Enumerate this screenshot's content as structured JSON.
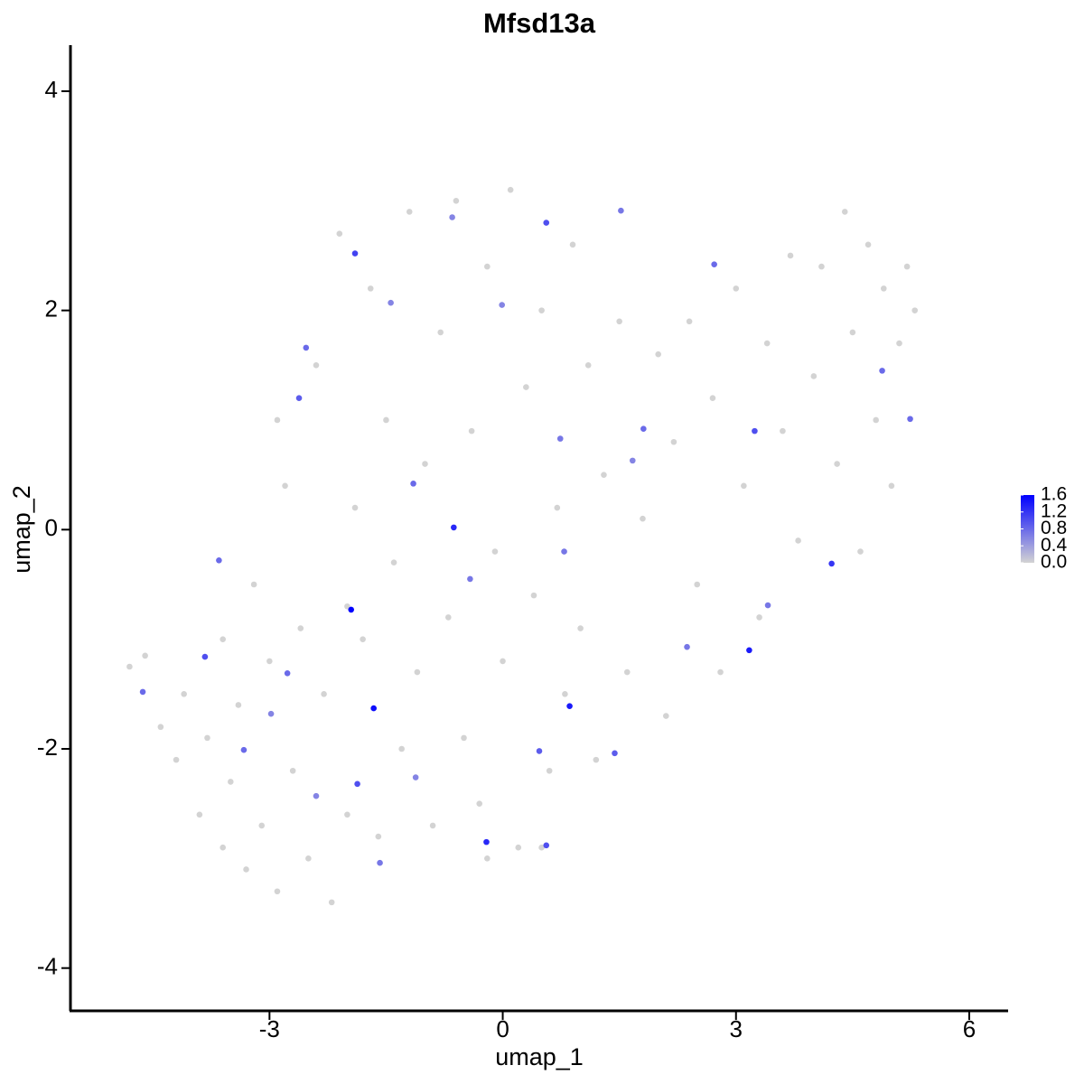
{
  "chart_data": {
    "type": "scatter",
    "title": "Mfsd13a",
    "x_label": "umap_1",
    "y_label": "umap_2",
    "xlim": [
      -5.56,
      6.5
    ],
    "ylim": [
      -4.39,
      4.42
    ],
    "xticks": [
      -3,
      0,
      3,
      6
    ],
    "yticks": [
      -4,
      -2,
      0,
      2,
      4
    ],
    "grid": false,
    "colorscale": [
      "#d3d3d3",
      "#0000ff"
    ],
    "colorlim": [
      0,
      1.6
    ],
    "colorticks": [
      {
        "value": 0,
        "label": "0.0"
      },
      0.4,
      0.8,
      1.2,
      1.6
    ],
    "x": [
      -4.8,
      -4.6,
      -4.4,
      -4.2,
      -4.1,
      -3.9,
      -3.8,
      -3.6,
      -3.5,
      -3.4,
      -3.3,
      -3.2,
      -3.1,
      -3.0,
      -2.9,
      -2.8,
      -2.7,
      -2.6,
      -2.5,
      -2.4,
      -2.3,
      -2.2,
      -2.1,
      -2.0,
      -1.9,
      -1.8,
      -1.7,
      -1.6,
      -1.5,
      -1.4,
      -1.3,
      -1.2,
      -1.1,
      -1.0,
      -0.9,
      -0.8,
      -0.7,
      -0.6,
      -0.5,
      -0.4,
      -0.3,
      -0.2,
      -0.1,
      0.0,
      0.1,
      0.2,
      0.3,
      0.4,
      0.5,
      0.6,
      0.7,
      0.8,
      0.9,
      1.0,
      1.1,
      1.2,
      1.3,
      1.5,
      1.6,
      1.8,
      2.0,
      2.1,
      2.2,
      2.4,
      2.5,
      2.7,
      2.8,
      3.0,
      3.1,
      3.3,
      3.4,
      3.6,
      3.7,
      3.8,
      4.0,
      4.1,
      4.3,
      4.4,
      4.5,
      4.6,
      4.7,
      4.8,
      4.9,
      5.0,
      5.1,
      5.2,
      5.3,
      -2.0,
      -3.6,
      -2.9,
      -0.2,
      0.5,
      -0.65,
      -0.01,
      -1.44,
      0.74,
      -0.42,
      -1.12,
      -2.4,
      -2.98,
      1.67,
      -1.58,
      0.79,
      2.37,
      3.41,
      -3.33,
      -2.77,
      -2.53,
      4.88,
      1.81,
      -1.15,
      1.44,
      0.47,
      -2.62,
      -3.65,
      1.52,
      2.72,
      5.24,
      -4.63,
      -3.83,
      -1.87,
      3.24,
      0.56,
      0.56,
      -1.9,
      4.23,
      -0.63,
      -0.21,
      3.17,
      0.86,
      -1.66,
      -1.95
    ],
    "y": [
      -1.25,
      -1.15,
      -1.8,
      -2.1,
      -1.5,
      -2.6,
      -1.9,
      -2.9,
      -2.3,
      -1.6,
      -3.1,
      -0.5,
      -2.7,
      -1.2,
      -3.3,
      0.4,
      -2.2,
      -0.9,
      -3.0,
      1.5,
      -1.5,
      -3.4,
      2.7,
      -2.6,
      0.2,
      -1.0,
      2.2,
      -2.8,
      1.0,
      -0.3,
      -2.0,
      2.9,
      -1.3,
      0.6,
      -2.7,
      1.8,
      -0.8,
      3.0,
      -1.9,
      0.9,
      -2.5,
      2.4,
      -0.2,
      -1.2,
      3.1,
      -2.9,
      1.3,
      -0.6,
      2.0,
      -2.2,
      0.2,
      -1.5,
      2.6,
      -0.9,
      1.5,
      -2.1,
      0.5,
      1.9,
      -1.3,
      0.1,
      1.6,
      -1.7,
      0.8,
      1.9,
      -0.5,
      1.2,
      -1.3,
      2.2,
      0.4,
      -0.8,
      1.7,
      0.9,
      2.5,
      -0.1,
      1.4,
      2.4,
      0.6,
      2.9,
      1.8,
      -0.2,
      2.6,
      1.0,
      2.2,
      0.4,
      1.7,
      2.4,
      2.0,
      -0.7,
      -1.0,
      1.0,
      -3.0,
      -2.9,
      2.85,
      2.05,
      2.07,
      0.83,
      -0.45,
      -2.26,
      -2.43,
      -1.68,
      0.63,
      -3.04,
      -0.2,
      -1.07,
      -0.69,
      -2.01,
      -1.31,
      1.66,
      1.45,
      0.92,
      0.42,
      -2.04,
      -2.02,
      1.2,
      -0.28,
      2.91,
      2.42,
      1.01,
      -1.48,
      -1.16,
      -2.32,
      0.9,
      -2.88,
      2.8,
      2.52,
      -0.31,
      0.02,
      -2.85,
      -1.1,
      -1.61,
      -1.63,
      -0.73
    ],
    "values": [
      0,
      0,
      0,
      0,
      0,
      0,
      0,
      0,
      0,
      0,
      0,
      0,
      0,
      0,
      0,
      0,
      0,
      0,
      0,
      0,
      0,
      0,
      0,
      0,
      0,
      0,
      0,
      0,
      0,
      0,
      0,
      0,
      0,
      0,
      0,
      0,
      0,
      0,
      0,
      0,
      0,
      0,
      0,
      0,
      0,
      0,
      0,
      0,
      0,
      0,
      0,
      0,
      0,
      0,
      0,
      0,
      0,
      0,
      0,
      0,
      0,
      0,
      0,
      0,
      0,
      0,
      0,
      0,
      0,
      0,
      0,
      0,
      0,
      0,
      0,
      0,
      0,
      0,
      0,
      0,
      0,
      0,
      0,
      0,
      0,
      0,
      0,
      0,
      0,
      0,
      0,
      0,
      0.6,
      0.6,
      0.6,
      0.7,
      0.7,
      0.6,
      0.6,
      0.6,
      0.6,
      0.7,
      0.7,
      0.7,
      0.7,
      0.8,
      0.8,
      0.8,
      0.8,
      0.8,
      0.8,
      0.9,
      0.9,
      0.9,
      0.8,
      0.7,
      0.8,
      0.8,
      0.8,
      1.0,
      1.0,
      1.0,
      1.0,
      1.0,
      1.1,
      1.2,
      1.3,
      1.3,
      1.4,
      1.4,
      1.5,
      1.6
    ]
  }
}
